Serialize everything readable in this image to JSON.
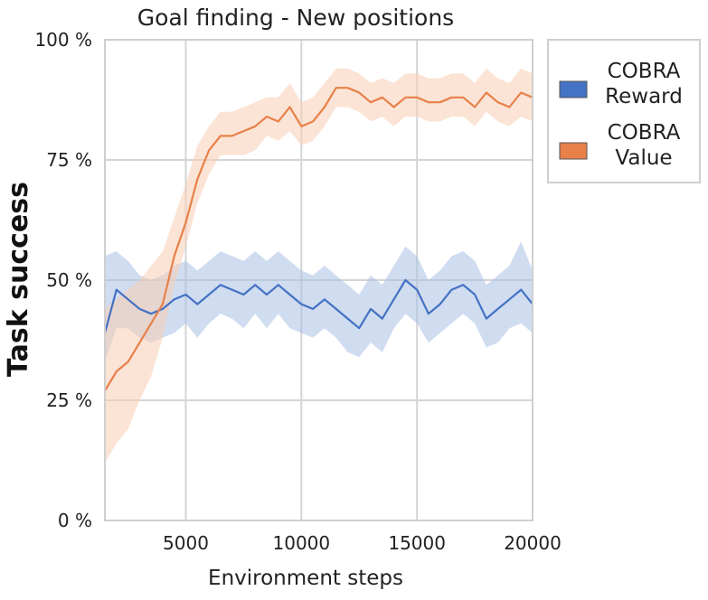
{
  "chart_data": {
    "type": "line",
    "title": "Goal finding - New positions",
    "xlabel": "Environment steps",
    "ylabel": "Task success",
    "xlim": [
      1500,
      20000
    ],
    "ylim": [
      0,
      100
    ],
    "x_ticks": [
      5000,
      10000,
      15000,
      20000
    ],
    "x_tick_labels": [
      "5000",
      "10000",
      "15000",
      "20000"
    ],
    "y_ticks": [
      0,
      25,
      50,
      75,
      100
    ],
    "y_tick_labels": [
      "0 %",
      "25 %",
      "50 %",
      "75 %",
      "100 %"
    ],
    "grid": true,
    "legend_position": "outside-right-top",
    "series": [
      {
        "name": "COBRA Reward",
        "legend_lines": [
          "COBRA",
          "Reward"
        ],
        "color": "#4472c4",
        "band_color": "#a9bfe4",
        "x": [
          1500,
          2000,
          2500,
          3000,
          3500,
          4000,
          4500,
          5000,
          5500,
          6000,
          6500,
          7000,
          7500,
          8000,
          8500,
          9000,
          9500,
          10000,
          10500,
          11000,
          11500,
          12000,
          12500,
          13000,
          13500,
          14000,
          14500,
          15000,
          15500,
          16000,
          16500,
          17000,
          17500,
          18000,
          18500,
          19000,
          19500,
          20000
        ],
        "y": [
          39,
          48,
          46,
          44,
          43,
          44,
          46,
          47,
          45,
          47,
          49,
          48,
          47,
          49,
          47,
          49,
          47,
          45,
          44,
          46,
          44,
          42,
          40,
          44,
          42,
          46,
          50,
          48,
          43,
          45,
          48,
          49,
          47,
          42,
          44,
          46,
          48,
          45
        ],
        "lower": [
          33,
          40,
          40,
          38,
          37,
          38,
          39,
          41,
          38,
          41,
          43,
          42,
          40,
          43,
          40,
          43,
          40,
          39,
          38,
          40,
          38,
          35,
          34,
          37,
          35,
          40,
          43,
          41,
          37,
          39,
          41,
          43,
          41,
          36,
          37,
          40,
          41,
          39
        ],
        "upper": [
          55,
          56,
          54,
          51,
          50,
          51,
          53,
          54,
          52,
          54,
          56,
          55,
          54,
          56,
          54,
          56,
          54,
          52,
          51,
          53,
          51,
          49,
          47,
          51,
          49,
          53,
          57,
          55,
          50,
          52,
          55,
          56,
          54,
          49,
          51,
          53,
          58,
          52
        ]
      },
      {
        "name": "COBRA Value",
        "legend_lines": [
          "COBRA",
          "Value"
        ],
        "color": "#e8804a",
        "band_color": "#f7cdb3",
        "x": [
          1500,
          2000,
          2500,
          3000,
          3500,
          4000,
          4500,
          5000,
          5500,
          6000,
          6500,
          7000,
          7500,
          8000,
          8500,
          9000,
          9500,
          10000,
          10500,
          11000,
          11500,
          12000,
          12500,
          13000,
          13500,
          14000,
          14500,
          15000,
          15500,
          16000,
          16500,
          17000,
          17500,
          18000,
          18500,
          19000,
          19500,
          20000
        ],
        "y": [
          27,
          31,
          33,
          37,
          41,
          45,
          55,
          62,
          71,
          77,
          80,
          80,
          81,
          82,
          84,
          83,
          86,
          82,
          83,
          86,
          90,
          90,
          89,
          87,
          88,
          86,
          88,
          88,
          87,
          87,
          88,
          88,
          86,
          89,
          87,
          86,
          89,
          88
        ],
        "lower": [
          12,
          16,
          19,
          25,
          30,
          38,
          49,
          57,
          66,
          72,
          76,
          76,
          76,
          77,
          80,
          79,
          81,
          78,
          79,
          82,
          86,
          86,
          85,
          83,
          84,
          82,
          84,
          84,
          83,
          83,
          84,
          84,
          82,
          85,
          83,
          82,
          84,
          83
        ],
        "upper": [
          44,
          46,
          48,
          50,
          53,
          56,
          63,
          70,
          78,
          82,
          85,
          85,
          86,
          87,
          88,
          88,
          91,
          87,
          88,
          91,
          94,
          94,
          93,
          91,
          92,
          91,
          93,
          93,
          92,
          92,
          93,
          93,
          91,
          94,
          92,
          91,
          94,
          93
        ]
      }
    ]
  }
}
